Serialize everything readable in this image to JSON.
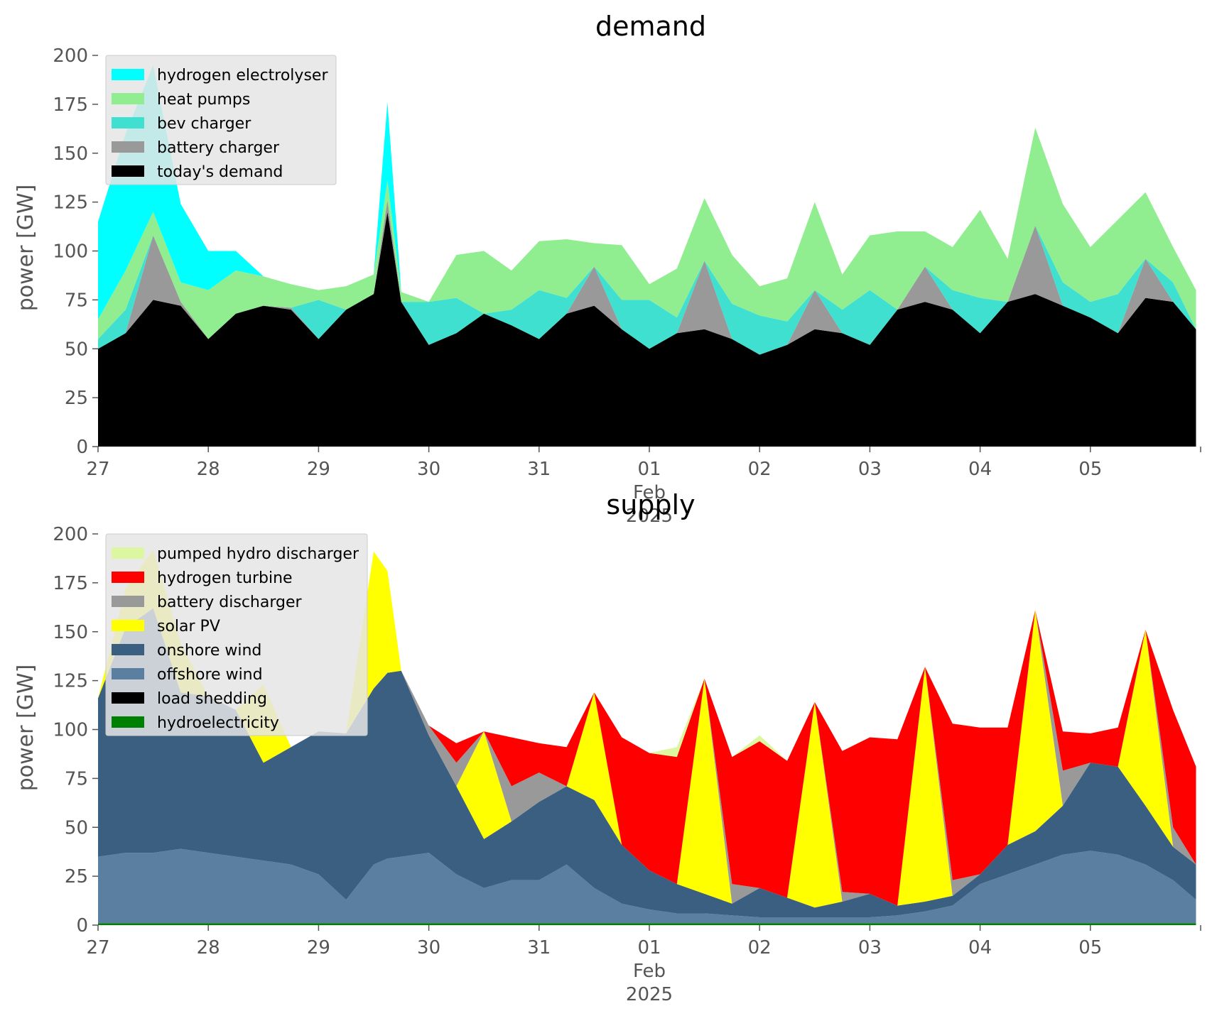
{
  "chart_data": [
    {
      "type": "area",
      "stacked": true,
      "title": "demand",
      "ylabel": "power [GW]",
      "ylim": [
        0,
        200
      ],
      "yticks": [
        0,
        25,
        50,
        75,
        100,
        125,
        150,
        175,
        200
      ],
      "x_start": "2025-01-27",
      "x_end": "2025-02-06",
      "xticks": [
        "27",
        "28",
        "29",
        "30",
        "31",
        "01\nFeb\n2025",
        "02",
        "03",
        "04",
        "05"
      ],
      "grid": false,
      "legend_placement": "upper-left",
      "x_times": [
        "27 00:00",
        "27 06:00",
        "27 12:00",
        "27 18:00",
        "28 00:00",
        "28 06:00",
        "28 12:00",
        "28 18:00",
        "29 00:00",
        "29 06:00",
        "29 12:00",
        "29 15:00",
        "29 18:00",
        "30 00:00",
        "30 06:00",
        "30 12:00",
        "30 18:00",
        "31 00:00",
        "31 06:00",
        "31 12:00",
        "31 18:00",
        "01 00:00",
        "01 06:00",
        "01 12:00",
        "01 18:00",
        "02 00:00",
        "02 06:00",
        "02 12:00",
        "02 18:00",
        "03 00:00",
        "03 06:00",
        "03 12:00",
        "03 18:00",
        "04 00:00",
        "04 06:00",
        "04 12:00",
        "04 18:00",
        "05 00:00",
        "05 06:00",
        "05 12:00",
        "05 18:00",
        "05 23:00"
      ],
      "series": [
        {
          "name": "today's demand",
          "color": "#000000",
          "values": [
            50,
            58,
            75,
            72,
            55,
            68,
            72,
            70,
            55,
            70,
            78,
            120,
            74,
            52,
            58,
            68,
            62,
            55,
            68,
            72,
            60,
            50,
            58,
            60,
            55,
            47,
            52,
            60,
            58,
            52,
            70,
            74,
            70,
            58,
            74,
            78,
            72,
            66,
            58,
            76,
            74,
            60
          ]
        },
        {
          "name": "battery charger",
          "color": "#999999",
          "values": [
            0,
            0,
            33,
            2,
            0,
            0,
            0,
            1,
            0,
            0,
            0,
            6,
            0,
            0,
            0,
            0,
            0,
            0,
            0,
            20,
            0,
            0,
            0,
            35,
            0,
            0,
            0,
            20,
            0,
            0,
            0,
            18,
            0,
            0,
            0,
            35,
            0,
            0,
            0,
            20,
            0,
            0
          ]
        },
        {
          "name": "bev charger",
          "color": "#40e0d0",
          "values": [
            5,
            12,
            0,
            0,
            0,
            0,
            0,
            0,
            20,
            0,
            0,
            0,
            0,
            22,
            18,
            0,
            8,
            25,
            8,
            0,
            15,
            25,
            8,
            0,
            18,
            20,
            12,
            0,
            12,
            28,
            0,
            0,
            10,
            18,
            0,
            0,
            12,
            8,
            20,
            0,
            10,
            0
          ]
        },
        {
          "name": "heat pumps",
          "color": "#90ee90",
          "values": [
            10,
            20,
            12,
            10,
            25,
            22,
            15,
            12,
            5,
            12,
            10,
            10,
            5,
            0,
            22,
            32,
            20,
            25,
            30,
            12,
            28,
            8,
            25,
            32,
            25,
            15,
            22,
            45,
            18,
            28,
            40,
            18,
            22,
            45,
            22,
            50,
            40,
            28,
            38,
            34,
            18,
            20
          ]
        },
        {
          "name": "hydrogen electrolyser",
          "color": "#00ffff",
          "values": [
            50,
            70,
            75,
            40,
            20,
            10,
            0,
            0,
            0,
            0,
            0,
            40,
            0,
            0,
            0,
            0,
            0,
            0,
            0,
            0,
            0,
            0,
            0,
            0,
            0,
            0,
            0,
            0,
            0,
            0,
            0,
            0,
            0,
            0,
            0,
            0,
            0,
            0,
            0,
            0,
            0,
            0
          ]
        }
      ],
      "legend": [
        "hydrogen electrolyser",
        "heat pumps",
        "bev charger",
        "battery charger",
        "today's demand"
      ]
    },
    {
      "type": "area",
      "stacked": true,
      "title": "supply",
      "ylabel": "power [GW]",
      "ylim": [
        0,
        200
      ],
      "yticks": [
        0,
        25,
        50,
        75,
        100,
        125,
        150,
        175,
        200
      ],
      "x_start": "2025-01-27",
      "x_end": "2025-02-06",
      "xticks": [
        "27",
        "28",
        "29",
        "30",
        "31",
        "01\nFeb\n2025",
        "02",
        "03",
        "04",
        "05"
      ],
      "grid": false,
      "legend_placement": "upper-left",
      "x_times": [
        "27 00:00",
        "27 06:00",
        "27 12:00",
        "27 18:00",
        "28 00:00",
        "28 06:00",
        "28 12:00",
        "28 18:00",
        "29 00:00",
        "29 06:00",
        "29 12:00",
        "29 15:00",
        "29 18:00",
        "30 00:00",
        "30 06:00",
        "30 12:00",
        "30 18:00",
        "31 00:00",
        "31 06:00",
        "31 12:00",
        "31 18:00",
        "01 00:00",
        "01 06:00",
        "01 12:00",
        "01 18:00",
        "02 00:00",
        "02 06:00",
        "02 12:00",
        "02 18:00",
        "03 00:00",
        "03 06:00",
        "03 12:00",
        "03 18:00",
        "04 00:00",
        "04 06:00",
        "04 12:00",
        "04 18:00",
        "05 00:00",
        "05 06:00",
        "05 12:00",
        "05 18:00",
        "05 23:00"
      ],
      "series": [
        {
          "name": "hydroelectricity",
          "color": "#008000",
          "values": [
            1,
            1,
            1,
            1,
            1,
            1,
            1,
            1,
            1,
            1,
            1,
            1,
            1,
            1,
            1,
            1,
            1,
            1,
            1,
            1,
            1,
            1,
            1,
            1,
            1,
            1,
            1,
            1,
            1,
            1,
            1,
            1,
            1,
            1,
            1,
            1,
            1,
            1,
            1,
            1,
            1,
            1
          ]
        },
        {
          "name": "load shedding",
          "color": "#000000",
          "values": [
            0,
            0,
            0,
            0,
            0,
            0,
            0,
            0,
            0,
            0,
            0,
            0,
            0,
            0,
            0,
            0,
            0,
            0,
            0,
            0,
            0,
            0,
            0,
            0,
            0,
            0,
            0,
            0,
            0,
            0,
            0,
            0,
            0,
            0,
            0,
            0,
            0,
            0,
            0,
            0,
            0,
            0
          ]
        },
        {
          "name": "offshore wind",
          "color": "#5b7fa0",
          "values": [
            34,
            36,
            36,
            38,
            36,
            34,
            32,
            30,
            25,
            12,
            30,
            33,
            34,
            36,
            25,
            18,
            22,
            22,
            30,
            18,
            10,
            7,
            5,
            5,
            4,
            3,
            3,
            3,
            3,
            3,
            4,
            6,
            9,
            20,
            25,
            30,
            35,
            37,
            35,
            30,
            22,
            12
          ]
        },
        {
          "name": "onshore wind",
          "color": "#3b5f80",
          "values": [
            81,
            115,
            125,
            80,
            80,
            75,
            50,
            60,
            73,
            85,
            90,
            95,
            95,
            60,
            45,
            25,
            30,
            40,
            40,
            45,
            30,
            20,
            15,
            10,
            6,
            15,
            10,
            5,
            8,
            12,
            5,
            5,
            5,
            5,
            15,
            17,
            25,
            45,
            45,
            30,
            17,
            18
          ]
        },
        {
          "name": "solar PV",
          "color": "#ffff00",
          "values": [
            0,
            20,
            30,
            25,
            0,
            0,
            40,
            0,
            0,
            0,
            70,
            52,
            0,
            0,
            0,
            55,
            0,
            0,
            0,
            55,
            0,
            0,
            0,
            110,
            0,
            0,
            0,
            105,
            0,
            0,
            0,
            120,
            0,
            0,
            0,
            113,
            0,
            0,
            0,
            90,
            0,
            0
          ]
        },
        {
          "name": "battery discharger",
          "color": "#999999",
          "values": [
            0,
            0,
            0,
            0,
            0,
            0,
            0,
            0,
            0,
            0,
            0,
            0,
            0,
            5,
            12,
            0,
            18,
            15,
            0,
            0,
            0,
            0,
            0,
            0,
            10,
            0,
            0,
            0,
            5,
            0,
            0,
            0,
            8,
            0,
            0,
            0,
            18,
            0,
            0,
            0,
            10,
            0
          ]
        },
        {
          "name": "hydrogen turbine",
          "color": "#ff0000",
          "values": [
            0,
            0,
            0,
            0,
            0,
            0,
            0,
            0,
            0,
            0,
            0,
            0,
            0,
            0,
            10,
            0,
            25,
            15,
            20,
            0,
            55,
            60,
            65,
            0,
            65,
            75,
            70,
            0,
            72,
            80,
            85,
            0,
            80,
            75,
            60,
            0,
            20,
            15,
            20,
            0,
            60,
            50
          ]
        },
        {
          "name": "pumped hydro discharger",
          "color": "#ddf7a0",
          "values": [
            0,
            0,
            0,
            0,
            0,
            0,
            0,
            0,
            0,
            0,
            0,
            0,
            0,
            0,
            0,
            0,
            0,
            0,
            0,
            0,
            0,
            0,
            5,
            0,
            0,
            3,
            0,
            0,
            0,
            0,
            0,
            0,
            0,
            0,
            0,
            0,
            0,
            0,
            0,
            0,
            0,
            0
          ]
        }
      ],
      "legend": [
        "pumped hydro discharger",
        "hydrogen turbine",
        "battery discharger",
        "solar PV",
        "onshore wind",
        "offshore wind",
        "load shedding",
        "hydroelectricity"
      ]
    }
  ]
}
